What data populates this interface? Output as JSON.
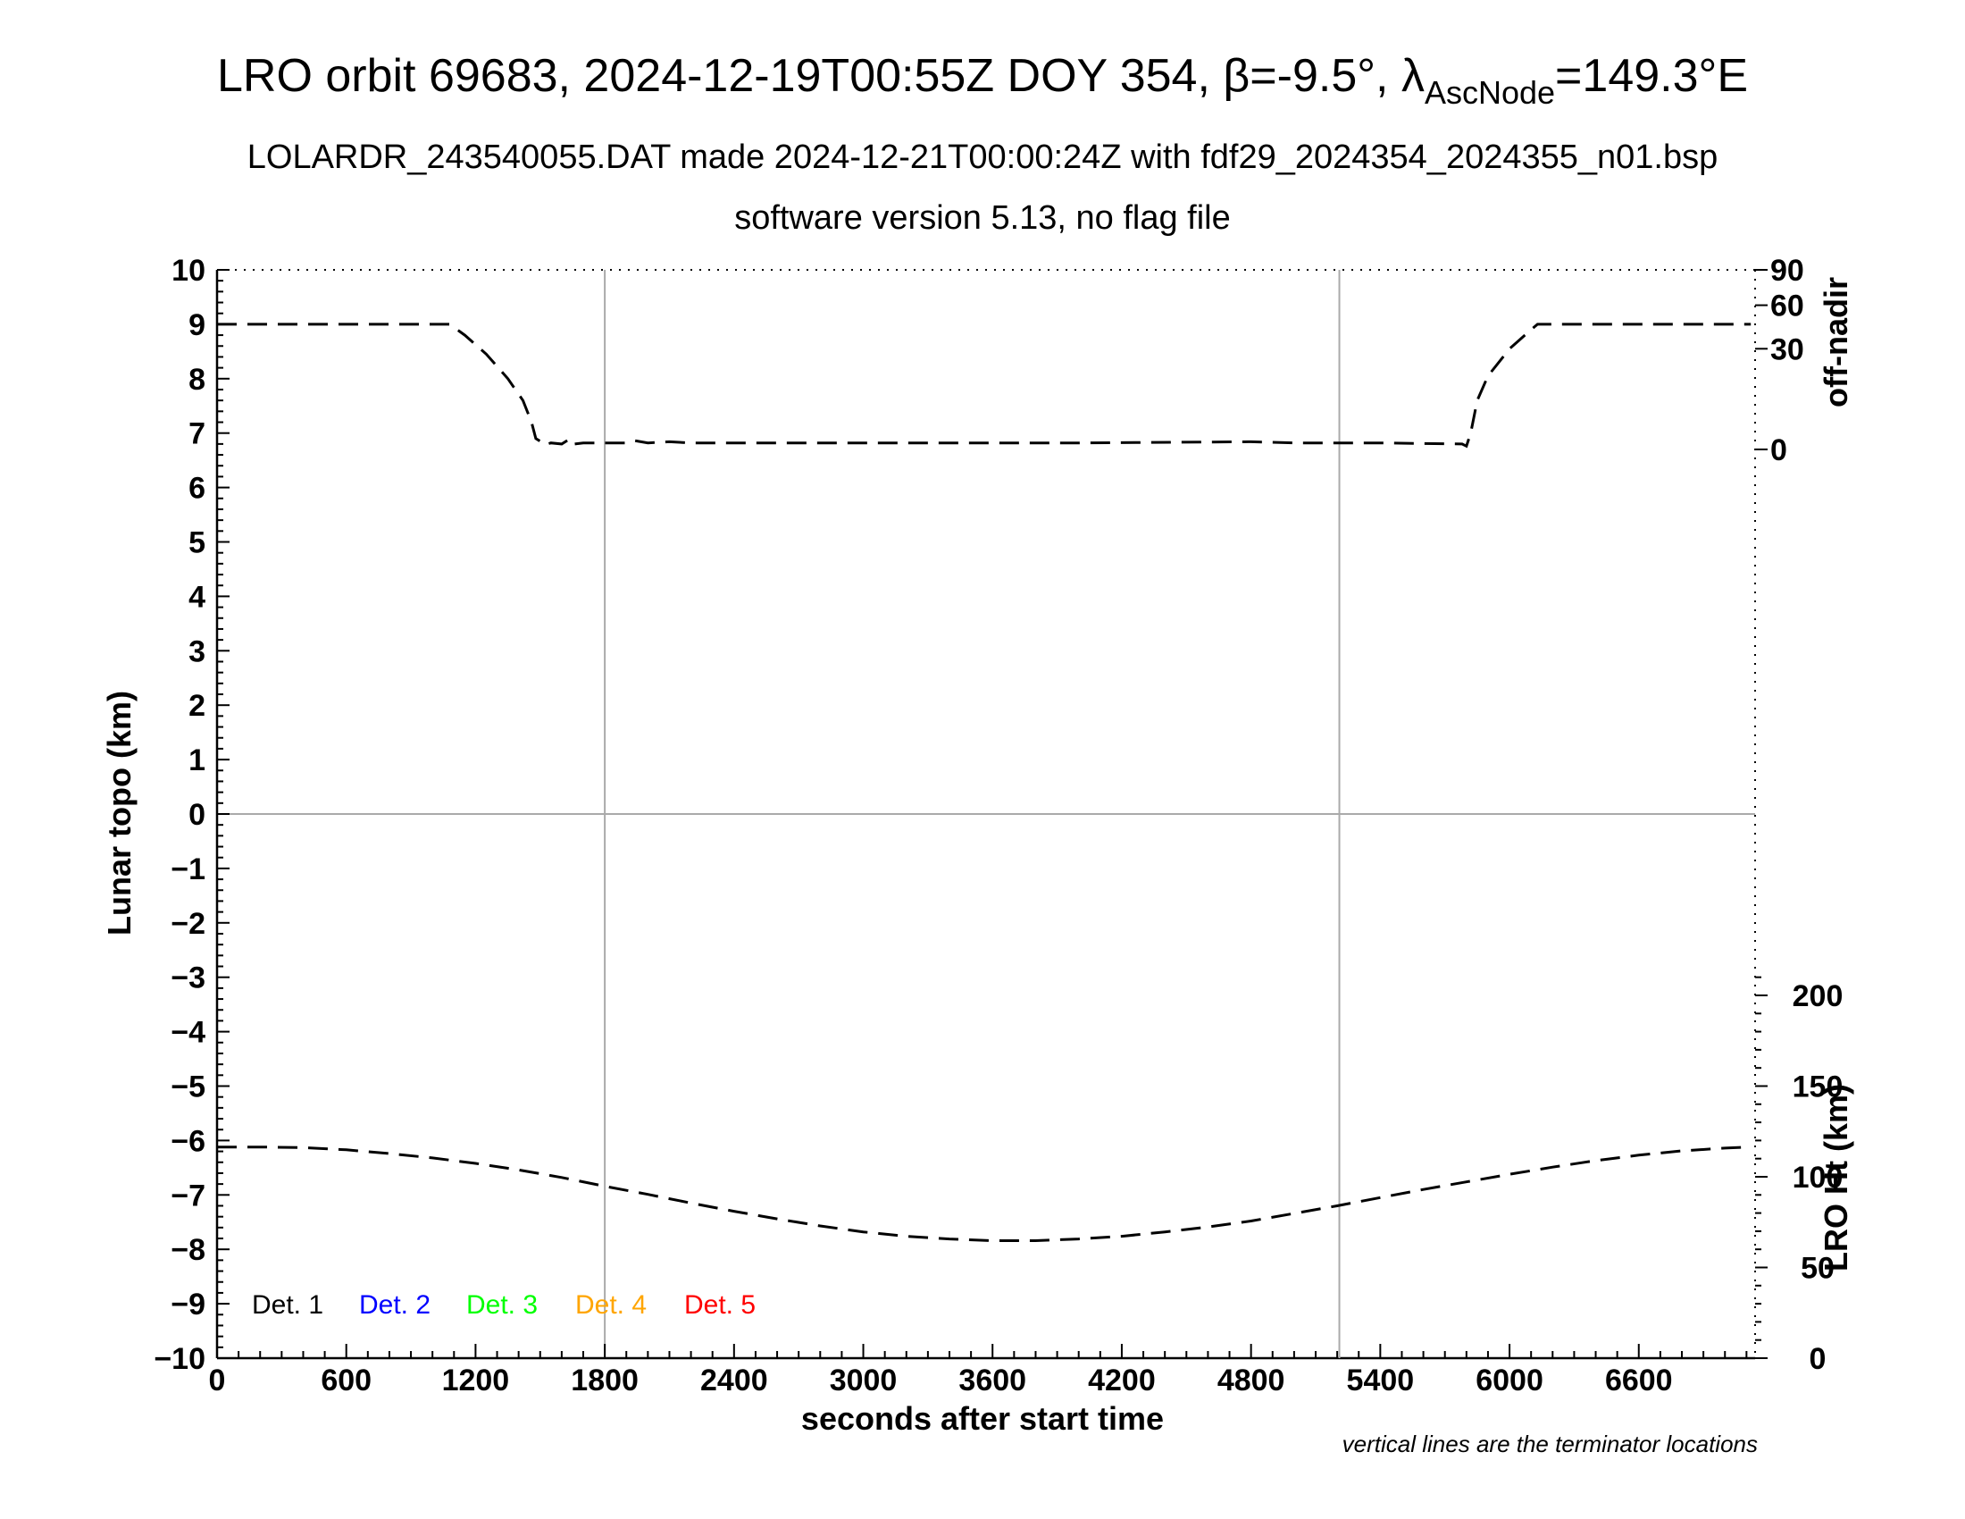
{
  "header": {
    "title_main": "LRO orbit 69683, 2024-12-19T00:55Z DOY 354, β=-9.5°, λ",
    "title_sub": "AscNode",
    "title_end": "=149.3°E",
    "subtitle1": "LOLARDR_243540055.DAT made 2024-12-21T00:00:24Z with fdf29_2024354_2024355_n01.bsp",
    "subtitle2": "software version 5.13, no flag file"
  },
  "footnote": "vertical lines are the terminator locations",
  "chart_data": {
    "type": "line",
    "xlabel": "seconds after start time",
    "ylabel": "Lunar topo (km)",
    "xlim": [
      0,
      7140
    ],
    "ylim": [
      -10,
      10
    ],
    "x_ticks": [
      "0",
      "600",
      "1200",
      "1800",
      "2400",
      "3000",
      "3600",
      "4200",
      "4800",
      "5400",
      "6000",
      "6600"
    ],
    "y_ticks": [
      "10",
      "9",
      "8",
      "7",
      "6",
      "5",
      "4",
      "3",
      "2",
      "1",
      "0",
      "−1",
      "−2",
      "−3",
      "−4",
      "−5",
      "−6",
      "−7",
      "−8",
      "−9",
      "−10"
    ],
    "terminators": [
      1800,
      5210
    ],
    "right_axis_top": {
      "label": "off-nadir",
      "ticks": [
        "90",
        "60",
        "30",
        "0"
      ]
    },
    "right_axis_bottom": {
      "label": "LRO Ht (km)",
      "ticks": [
        "200",
        "150",
        "100",
        "50",
        "0"
      ]
    },
    "series": [
      {
        "name": "off-nadir",
        "x": [
          0,
          1080,
          1150,
          1250,
          1350,
          1420,
          1460,
          1480,
          1500,
          1520,
          1550,
          1600,
          1640,
          1660,
          1700,
          1800,
          1900,
          1940,
          2000,
          2100,
          2200,
          3000,
          4000,
          4800,
          5000,
          5400,
          5780,
          5800,
          5820,
          5850,
          5900,
          6000,
          6100,
          6130,
          6500,
          7000,
          7120
        ],
        "y": [
          9.0,
          9.0,
          8.8,
          8.45,
          8.0,
          7.6,
          7.2,
          6.9,
          6.85,
          6.78,
          6.82,
          6.8,
          6.9,
          6.8,
          6.82,
          6.82,
          6.82,
          6.86,
          6.82,
          6.84,
          6.82,
          6.82,
          6.82,
          6.84,
          6.82,
          6.82,
          6.8,
          6.76,
          7.0,
          7.6,
          8.05,
          8.55,
          8.9,
          9.0,
          9.0,
          9.0,
          9.0
        ]
      },
      {
        "name": "LRO Ht",
        "x": [
          0,
          200,
          400,
          600,
          800,
          1000,
          1200,
          1400,
          1600,
          1800,
          2000,
          2200,
          2400,
          2600,
          2800,
          3000,
          3200,
          3400,
          3600,
          3800,
          4000,
          4200,
          4400,
          4600,
          4800,
          5000,
          5200,
          5400,
          5600,
          5800,
          6000,
          6200,
          6400,
          6600,
          6800,
          7000,
          7120
        ],
        "y": [
          -6.12,
          -6.12,
          -6.13,
          -6.17,
          -6.24,
          -6.32,
          -6.42,
          -6.54,
          -6.68,
          -6.84,
          -6.99,
          -7.15,
          -7.3,
          -7.44,
          -7.57,
          -7.68,
          -7.76,
          -7.81,
          -7.84,
          -7.84,
          -7.81,
          -7.76,
          -7.68,
          -7.59,
          -7.48,
          -7.34,
          -7.2,
          -7.05,
          -6.9,
          -6.76,
          -6.62,
          -6.49,
          -6.37,
          -6.27,
          -6.19,
          -6.14,
          -6.12
        ]
      }
    ],
    "legend": [
      {
        "label": "Det. 1",
        "color": "#000000"
      },
      {
        "label": "Det. 2",
        "color": "#0000ff"
      },
      {
        "label": "Det. 3",
        "color": "#00ff00"
      },
      {
        "label": "Det. 4",
        "color": "#ffa500"
      },
      {
        "label": "Det. 5",
        "color": "#ff0000"
      }
    ]
  }
}
